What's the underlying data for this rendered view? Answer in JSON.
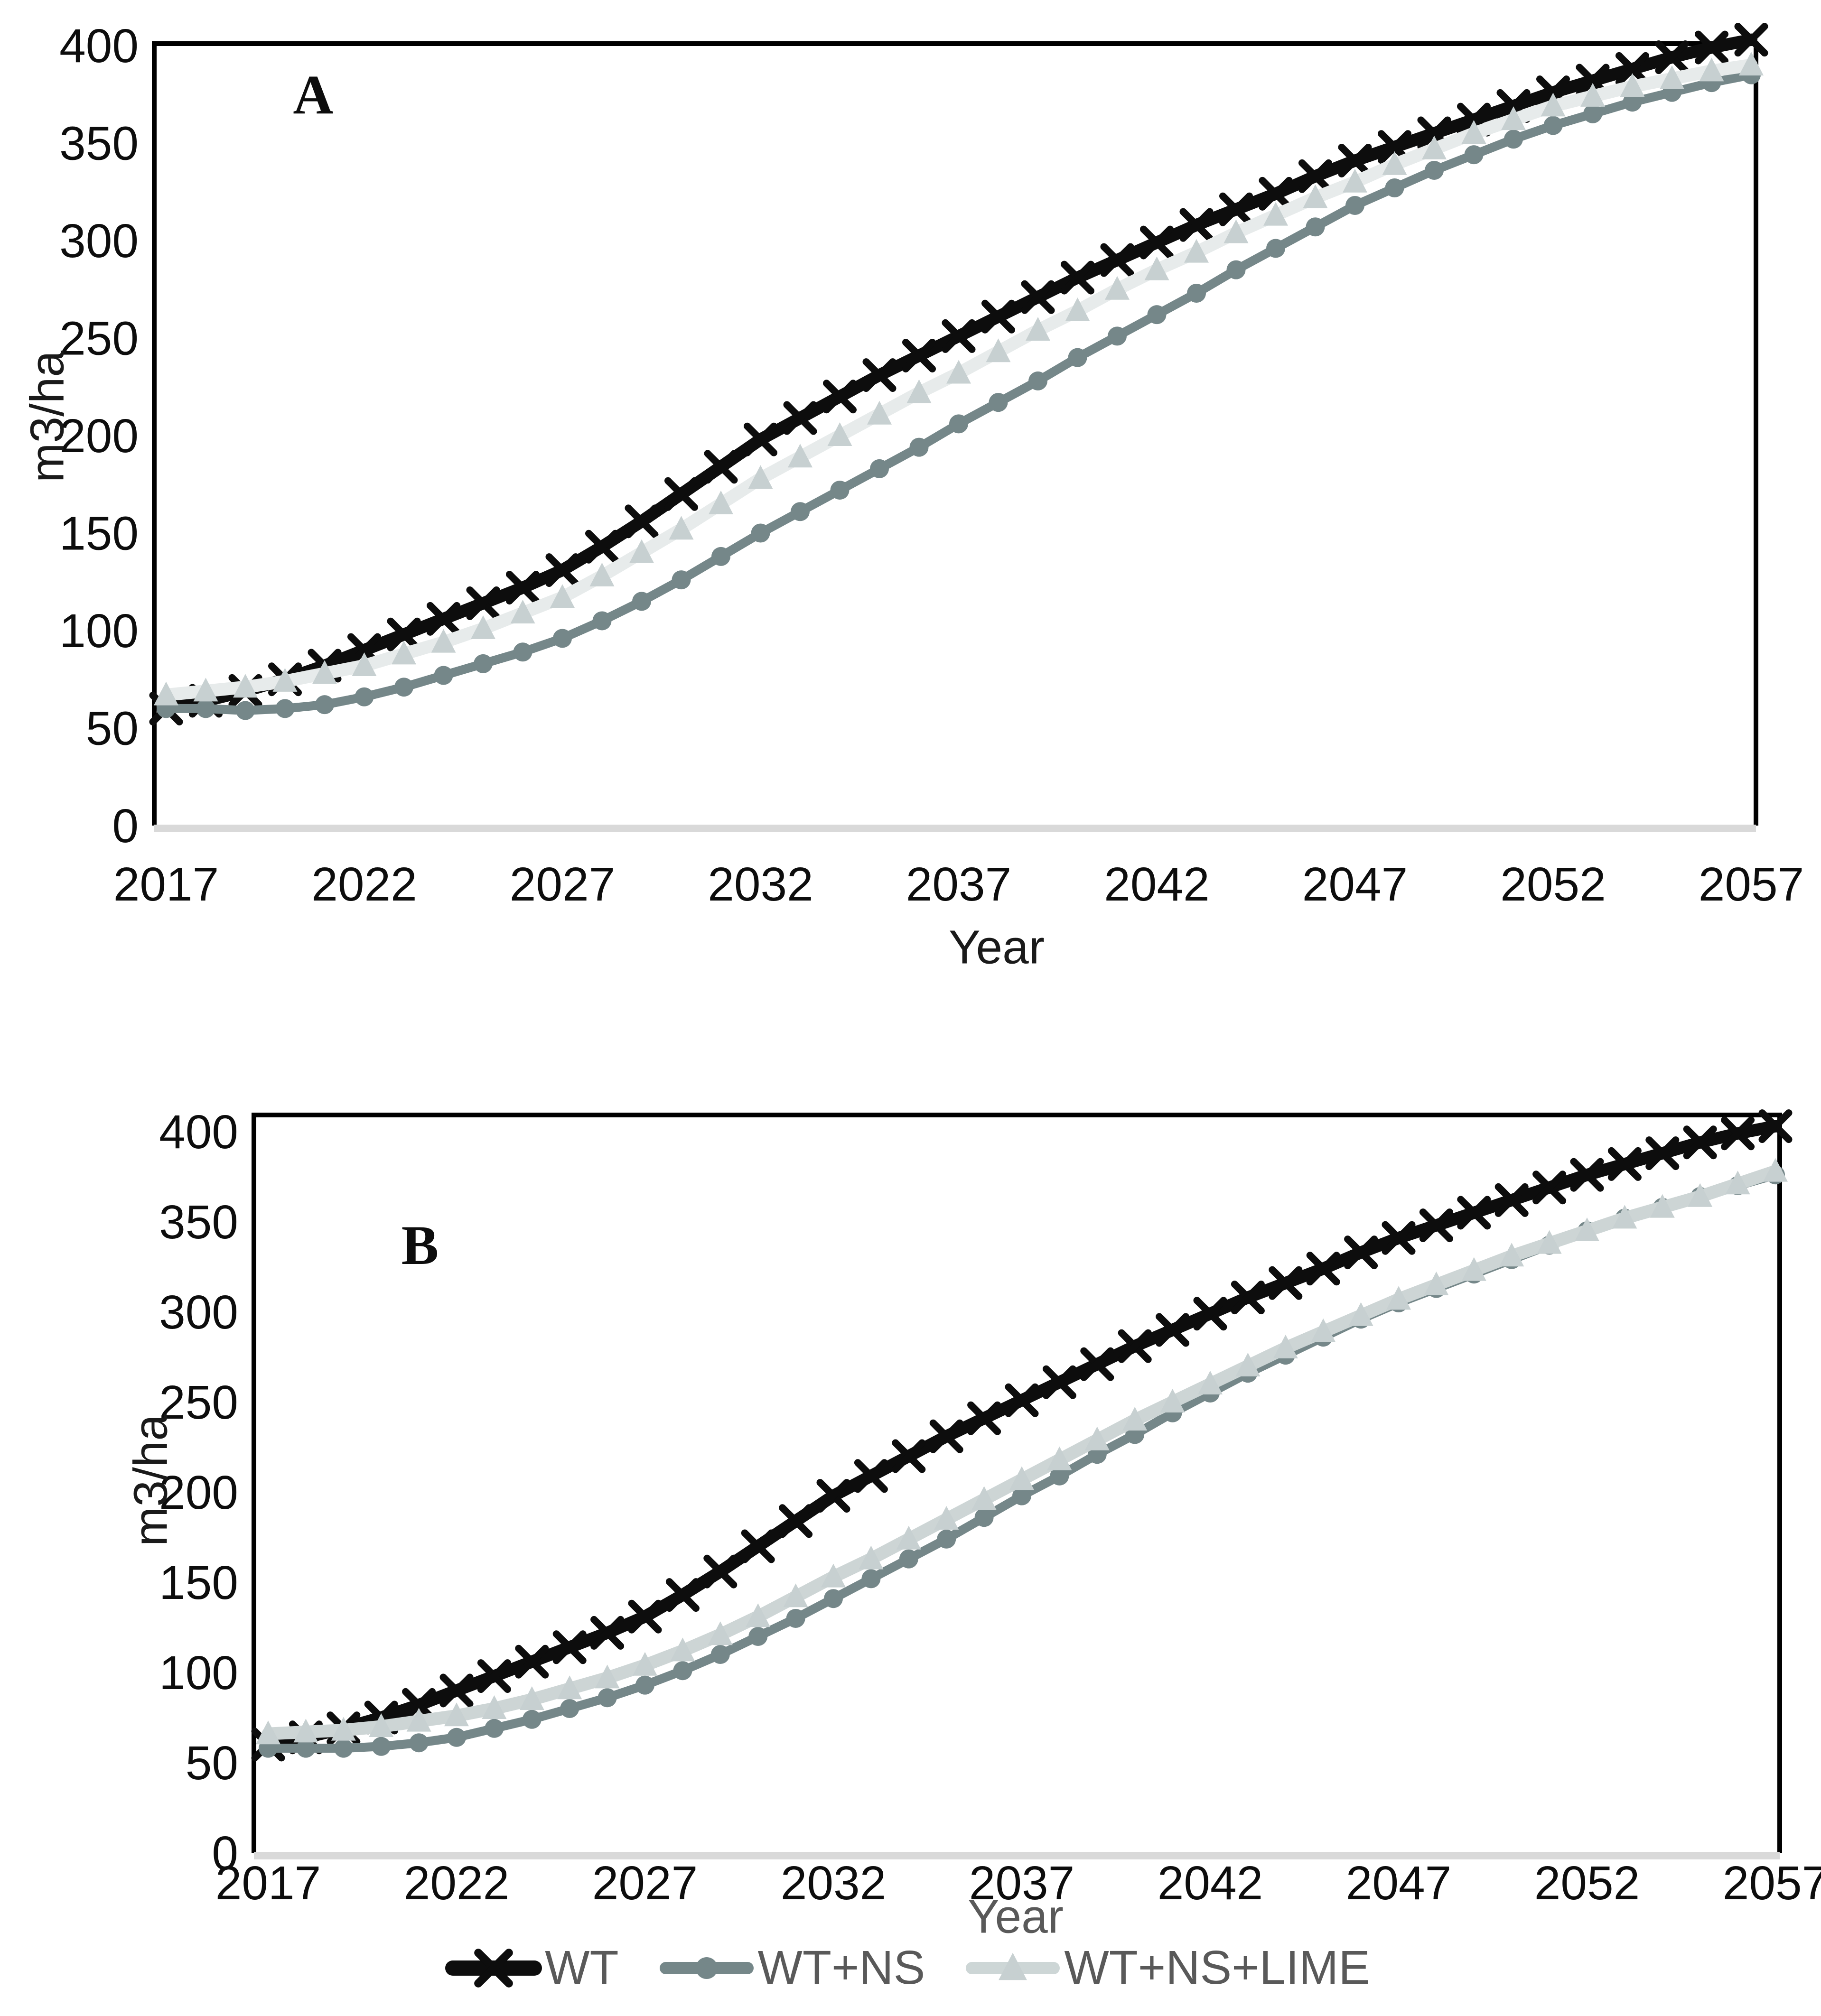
{
  "page": {
    "background": "#ffffff"
  },
  "axes_text": {
    "y_title": "m3/ha",
    "x_title": "Year"
  },
  "panels": {
    "a_label": "A",
    "b_label": "B",
    "a_xlabel_color": "#1a1a1a",
    "b_xlabel_color": "#595959"
  },
  "colors": {
    "axis_line": "#000000",
    "baseline": "#d9d9d9",
    "tick_text": "#0d0d0d",
    "legend_text": "#595959",
    "wt": "#0d0d0d",
    "ns": "#758789",
    "lime_marker": "#c7d0d1",
    "lime_line_a": "#e7ebeb",
    "lime_line_b": "#cdd5d5"
  },
  "legend": {
    "items": [
      {
        "label": "WT",
        "marker": "x",
        "marker_color": "#0d0d0d",
        "line_color": "#0d0d0d"
      },
      {
        "label": "WT+NS",
        "marker": "circle",
        "marker_color": "#758789",
        "line_color": "#758789"
      },
      {
        "label": "WT+NS+LIME",
        "marker": "triangle",
        "marker_color": "#c7d0d1",
        "line_color": "#cdd6d6"
      }
    ]
  },
  "chart_data": [
    {
      "type": "line",
      "panel_label": "A",
      "ylabel": "m3/ha",
      "xlabel": "Year",
      "ylim": [
        0,
        400
      ],
      "y_tick_step": 50,
      "x_start": 2017,
      "x_end": 2057,
      "x_tick_step": 5,
      "grid": false,
      "legend_position": "bottom",
      "series": [
        {
          "name": "WT",
          "marker": "x",
          "marker_color": "#0d0d0d",
          "line_color": "#0d0d0d",
          "values": [
            60,
            64,
            69,
            75,
            82,
            90,
            98,
            106,
            114,
            122,
            131,
            143,
            156,
            170,
            184,
            198,
            209,
            220,
            231,
            241,
            251,
            261,
            271,
            281,
            290,
            299,
            308,
            316,
            324,
            333,
            341,
            348,
            355,
            362,
            369,
            376,
            382,
            388,
            394,
            399,
            403
          ]
        },
        {
          "name": "WT+NS",
          "marker": "circle",
          "marker_color": "#758789",
          "line_color": "#758789",
          "values": [
            60,
            60,
            59,
            60,
            62,
            66,
            71,
            77,
            83,
            89,
            96,
            105,
            115,
            126,
            138,
            150,
            161,
            172,
            183,
            194,
            206,
            217,
            228,
            240,
            251,
            262,
            273,
            285,
            296,
            307,
            318,
            327,
            336,
            344,
            352,
            359,
            365,
            371,
            376,
            381,
            385
          ]
        },
        {
          "name": "WT+NS+LIME",
          "marker": "triangle",
          "marker_color": "#c7d0d1",
          "line_color": "#e7ebeb",
          "values": [
            67,
            69,
            71,
            74,
            78,
            82,
            88,
            94,
            101,
            109,
            117,
            128,
            140,
            152,
            165,
            178,
            189,
            200,
            211,
            222,
            232,
            243,
            254,
            264,
            275,
            285,
            294,
            304,
            313,
            322,
            330,
            339,
            347,
            355,
            362,
            369,
            374,
            379,
            383,
            387,
            390
          ]
        }
      ]
    },
    {
      "type": "line",
      "panel_label": "B",
      "ylabel": "m3/ha",
      "xlabel": "Year",
      "ylim": [
        0,
        400
      ],
      "y_tick_step": 50,
      "x_start": 2017,
      "x_end": 2057,
      "x_tick_step": 5,
      "grid": false,
      "legend_position": "bottom",
      "series": [
        {
          "name": "WT",
          "marker": "x",
          "marker_color": "#0d0d0d",
          "line_color": "#0d0d0d",
          "values": [
            60,
            64,
            69,
            75,
            82,
            90,
            98,
            106,
            114,
            122,
            131,
            143,
            156,
            170,
            184,
            198,
            209,
            220,
            231,
            241,
            251,
            261,
            271,
            281,
            290,
            299,
            308,
            316,
            324,
            333,
            341,
            348,
            355,
            362,
            369,
            376,
            382,
            388,
            394,
            399,
            403
          ]
        },
        {
          "name": "WT+NS",
          "marker": "circle",
          "marker_color": "#758789",
          "line_color": "#758789",
          "values": [
            58,
            58,
            58,
            59,
            61,
            64,
            69,
            74,
            80,
            86,
            93,
            101,
            110,
            120,
            130,
            141,
            152,
            163,
            174,
            186,
            198,
            209,
            221,
            232,
            244,
            255,
            266,
            276,
            286,
            296,
            305,
            313,
            321,
            329,
            337,
            345,
            352,
            358,
            364,
            370,
            376
          ]
        },
        {
          "name": "WT+NS+LIME",
          "marker": "triangle",
          "marker_color": "#c7d0d1",
          "line_color": "#cdd5d5",
          "values": [
            66,
            67,
            68,
            70,
            73,
            76,
            80,
            85,
            91,
            97,
            104,
            112,
            121,
            131,
            142,
            153,
            163,
            174,
            185,
            196,
            207,
            218,
            229,
            240,
            250,
            260,
            270,
            280,
            289,
            298,
            307,
            315,
            323,
            331,
            338,
            345,
            352,
            358,
            364,
            371,
            378
          ]
        }
      ]
    }
  ]
}
